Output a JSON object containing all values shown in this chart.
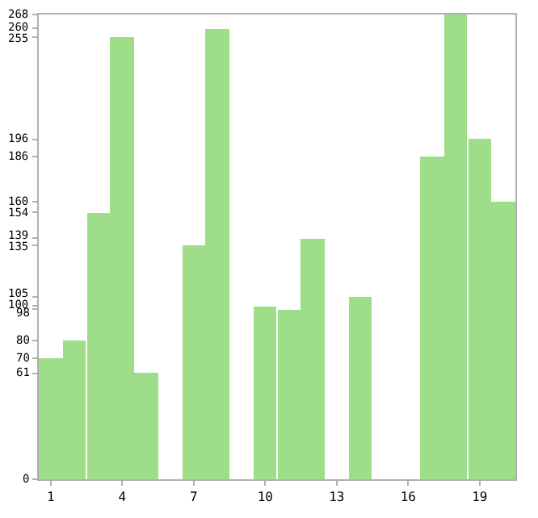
{
  "chart_data": {
    "type": "bar",
    "categories": [
      "1",
      null,
      null,
      "4",
      null,
      null,
      "7",
      null,
      null,
      "10",
      null,
      null,
      "13",
      null,
      null,
      "16",
      null,
      null,
      "19",
      null
    ],
    "values": [
      70,
      80,
      154,
      255,
      61,
      0,
      135,
      260,
      0,
      100,
      98,
      139,
      0,
      105,
      0,
      0,
      186,
      268,
      196,
      160
    ],
    "color": "#9ede88",
    "ylim": [
      0,
      268
    ],
    "yticks": [
      0,
      61,
      70,
      80,
      98,
      100,
      105,
      135,
      139,
      154,
      160,
      186,
      196,
      255,
      260,
      268
    ]
  }
}
